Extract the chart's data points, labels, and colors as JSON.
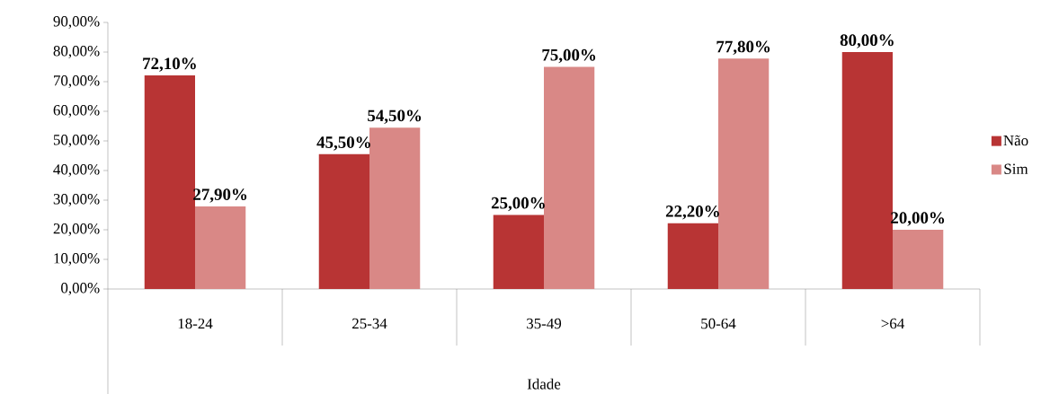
{
  "chart_data": {
    "type": "bar",
    "xlabel": "Idade",
    "categories": [
      "18-24",
      "25-34",
      "35-49",
      "50-64",
      ">64"
    ],
    "series": [
      {
        "name": "Não",
        "color": "#b83434",
        "values": [
          72.1,
          45.5,
          25.0,
          22.2,
          80.0
        ],
        "value_labels": [
          "72,10%",
          "45,50%",
          "25,00%",
          "22,20%",
          "80,00%"
        ]
      },
      {
        "name": "Sim",
        "color": "#d98886",
        "values": [
          27.9,
          54.5,
          75.0,
          77.8,
          20.0
        ],
        "value_labels": [
          "27,90%",
          "54,50%",
          "75,00%",
          "77,80%",
          "20,00%"
        ]
      }
    ],
    "ylim": [
      0,
      90
    ],
    "yticks": [
      {
        "value": 0,
        "label": "0,00%"
      },
      {
        "value": 10,
        "label": "10,00%"
      },
      {
        "value": 20,
        "label": "20,00%"
      },
      {
        "value": 30,
        "label": "30,00%"
      },
      {
        "value": 40,
        "label": "40,00%"
      },
      {
        "value": 50,
        "label": "50,00%"
      },
      {
        "value": 60,
        "label": "60,00%"
      },
      {
        "value": 70,
        "label": "70,00%"
      },
      {
        "value": 80,
        "label": "80,00%"
      },
      {
        "value": 90,
        "label": "90,00%"
      }
    ],
    "grid": false,
    "legend": "right"
  }
}
